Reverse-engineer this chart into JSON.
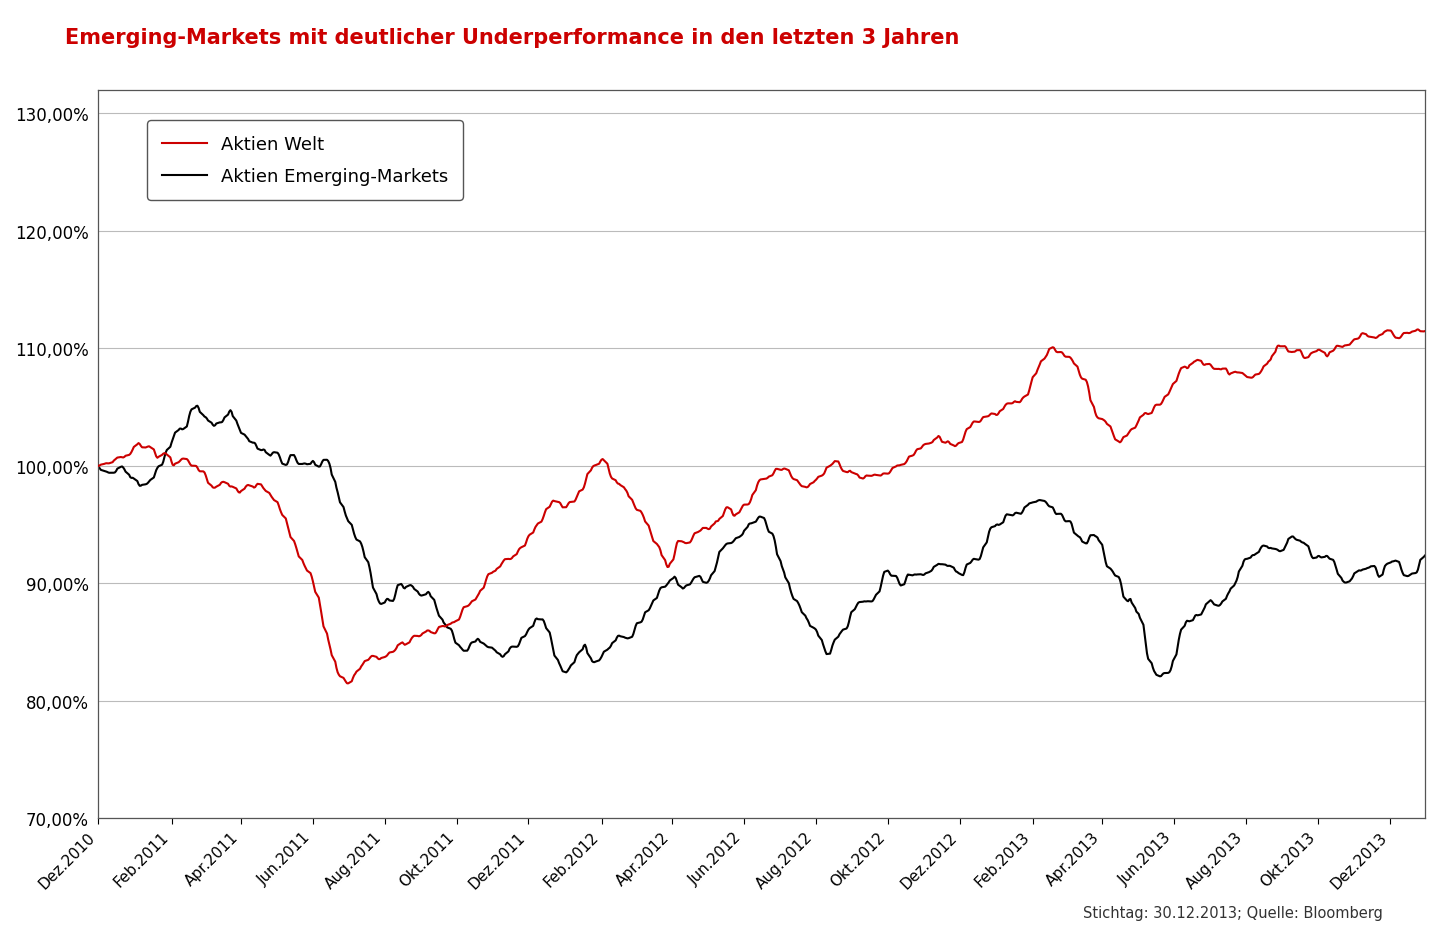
{
  "title": "Emerging-Markets mit deutlicher Underperformance in den letzten 3 Jahren",
  "title_color": "#cc0000",
  "title_fontsize": 15,
  "line1_label": "Aktien Welt",
  "line2_label": "Aktien Emerging-Markets",
  "line1_color": "#cc0000",
  "line2_color": "#000000",
  "ylim": [
    70,
    132
  ],
  "yticks": [
    70,
    80,
    90,
    100,
    110,
    120,
    130
  ],
  "ytick_labels": [
    "70,00%",
    "80,00%",
    "90,00%",
    "100,00%",
    "110,00%",
    "120,00%",
    "130,00%"
  ],
  "footnote": "Stichtag: 30.12.2013; Quelle: Bloomberg",
  "background_color": "#ffffff",
  "grid_color": "#bbbbbb",
  "line_width": 1.5,
  "x_labels": [
    "Dez.2010",
    "Feb.2011",
    "Apr.2011",
    "Jun.2011",
    "Aug.2011",
    "Okt.2011",
    "Dez.2011",
    "Feb.2012",
    "Apr.2012",
    "Jun.2012",
    "Aug.2012",
    "Okt.2012",
    "Dez.2012",
    "Feb.2013",
    "Apr.2013",
    "Jun.2013",
    "Aug.2013",
    "Okt.2013",
    "Dez.2013"
  ]
}
